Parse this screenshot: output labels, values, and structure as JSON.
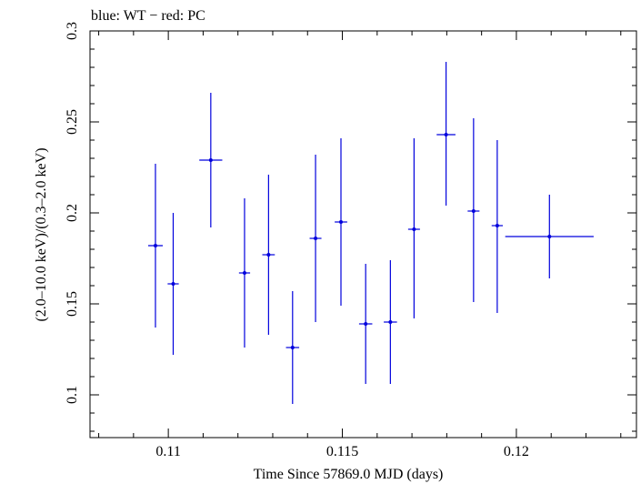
{
  "chart_data": {
    "type": "scatter",
    "title": "blue: WT − red: PC",
    "xlabel": "Time Since 57869.0 MJD (days)",
    "ylabel": "(2.0–10.0 keV)/(0.3–2.0 keV)",
    "xlim": [
      0.10775,
      0.12345
    ],
    "ylim": [
      0.0765,
      0.3
    ],
    "xticks": [
      0.11,
      0.115,
      0.12
    ],
    "xtick_labels": [
      "0.11",
      "0.115",
      "0.12"
    ],
    "yticks": [
      0.1,
      0.15,
      0.2,
      0.25,
      0.3
    ],
    "ytick_labels": [
      "0.1",
      "0.15",
      "0.2",
      "0.25",
      "0.3"
    ],
    "grid": false,
    "series": [
      {
        "color": "#0000dd",
        "points": [
          {
            "x": 0.10963,
            "xerr": 0.00021,
            "y": 0.182,
            "ylo": 0.137,
            "yhi": 0.227
          },
          {
            "x": 0.11014,
            "xerr": 0.00016,
            "y": 0.161,
            "ylo": 0.122,
            "yhi": 0.2
          },
          {
            "x": 0.11122,
            "xerr": 0.00033,
            "y": 0.229,
            "ylo": 0.192,
            "yhi": 0.266
          },
          {
            "x": 0.11219,
            "xerr": 0.00016,
            "y": 0.167,
            "ylo": 0.126,
            "yhi": 0.208
          },
          {
            "x": 0.11288,
            "xerr": 0.00018,
            "y": 0.177,
            "ylo": 0.133,
            "yhi": 0.221
          },
          {
            "x": 0.11357,
            "xerr": 0.00019,
            "y": 0.126,
            "ylo": 0.095,
            "yhi": 0.157
          },
          {
            "x": 0.11423,
            "xerr": 0.00017,
            "y": 0.186,
            "ylo": 0.14,
            "yhi": 0.232
          },
          {
            "x": 0.11496,
            "xerr": 0.00018,
            "y": 0.195,
            "ylo": 0.149,
            "yhi": 0.241
          },
          {
            "x": 0.11567,
            "xerr": 0.00019,
            "y": 0.139,
            "ylo": 0.106,
            "yhi": 0.172
          },
          {
            "x": 0.11638,
            "xerr": 0.00019,
            "y": 0.14,
            "ylo": 0.106,
            "yhi": 0.174
          },
          {
            "x": 0.11706,
            "xerr": 0.00017,
            "y": 0.191,
            "ylo": 0.142,
            "yhi": 0.241
          },
          {
            "x": 0.11798,
            "xerr": 0.00027,
            "y": 0.243,
            "ylo": 0.204,
            "yhi": 0.283
          },
          {
            "x": 0.11877,
            "xerr": 0.00017,
            "y": 0.201,
            "ylo": 0.151,
            "yhi": 0.252
          },
          {
            "x": 0.11945,
            "xerr": 0.00016,
            "y": 0.193,
            "ylo": 0.145,
            "yhi": 0.24
          },
          {
            "x": 0.12095,
            "xerr": 0.00127,
            "y": 0.187,
            "ylo": 0.164,
            "yhi": 0.21
          }
        ]
      }
    ]
  }
}
